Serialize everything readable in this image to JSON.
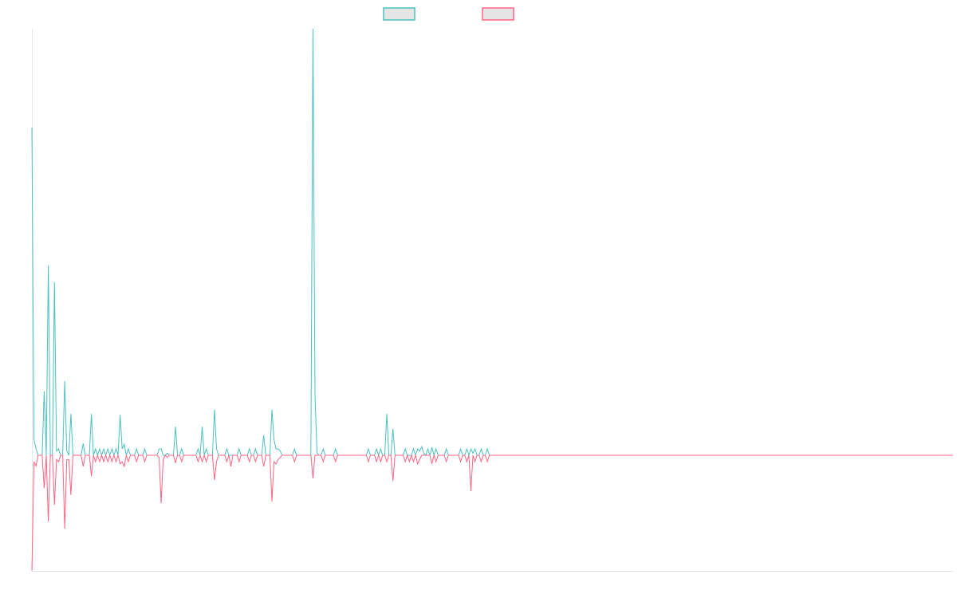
{
  "chart_data": {
    "type": "line",
    "title": "",
    "xlabel": "",
    "ylabel": "",
    "length": 450,
    "xlim": [
      0,
      449
    ],
    "ylim": [
      -27.1,
      100
    ],
    "grid": false,
    "legend_position": "top-center",
    "series": [
      {
        "name": "",
        "color": "#4bc0c0",
        "points": {
          "x": [
            0,
            1,
            2,
            3,
            6,
            7,
            8,
            9,
            11,
            12,
            13,
            14,
            16,
            17,
            19,
            20,
            25,
            26,
            29,
            30,
            31,
            33,
            35,
            37,
            39,
            41,
            43,
            44,
            45,
            46,
            47,
            51,
            55,
            62,
            63,
            66,
            70,
            73,
            81,
            83,
            85,
            89,
            90,
            95,
            101,
            106,
            109,
            113,
            117,
            118,
            119,
            120,
            121,
            128,
            137,
            138,
            139,
            142,
            148,
            164,
            168,
            170,
            173,
            176,
            182,
            186,
            188,
            189,
            190,
            191,
            193,
            195,
            197,
            202,
            209,
            212,
            214,
            215,
            216,
            219,
            222
          ],
          "y": [
            76.8,
            3.7,
            1.5,
            0,
            15,
            0,
            44.5,
            0,
            40.6,
            1,
            1.5,
            0,
            17.4,
            1,
            9.7,
            0,
            2.8,
            0,
            9.7,
            0,
            1.5,
            1.5,
            1.5,
            1.5,
            1.5,
            1.5,
            9.5,
            1.5,
            2.6,
            0,
            1.5,
            1.5,
            1.5,
            1.5,
            1.5,
            0.5,
            6.7,
            1.5,
            1.5,
            6.7,
            1.5,
            10.7,
            1.5,
            1.5,
            1.5,
            1.5,
            1.5,
            4.7,
            10.7,
            3.7,
            1.5,
            1.5,
            1,
            1.5,
            100,
            14,
            0.5,
            1.5,
            1.5,
            1.5,
            1.5,
            1.5,
            9.7,
            6.2,
            1.5,
            1.5,
            1.5,
            1,
            2,
            0.5,
            1.5,
            1.9,
            1.5,
            1.5,
            1.5,
            1.5,
            1.5,
            0.5,
            1.5,
            1.5,
            1.5
          ]
        }
      },
      {
        "name": "",
        "color": "#ff6384",
        "points": {
          "x": [
            0,
            1,
            2,
            3,
            6,
            7,
            8,
            9,
            11,
            12,
            13,
            14,
            16,
            17,
            18,
            19,
            20,
            25,
            26,
            29,
            30,
            31,
            33,
            35,
            37,
            39,
            41,
            43,
            44,
            45,
            46,
            47,
            51,
            55,
            62,
            63,
            64,
            66,
            70,
            73,
            81,
            83,
            85,
            89,
            90,
            95,
            97,
            101,
            106,
            109,
            113,
            117,
            118,
            119,
            120,
            121,
            128,
            137,
            138,
            142,
            148,
            164,
            168,
            170,
            173,
            176,
            182,
            184,
            186,
            188,
            189,
            195,
            197,
            202,
            209,
            212,
            214,
            215,
            216,
            219,
            222
          ],
          "y": [
            -27,
            -1.5,
            -2.5,
            0,
            -7.7,
            0,
            -15.5,
            0,
            -11.6,
            -1,
            -1.5,
            0,
            -17.2,
            -1,
            -1,
            -9.3,
            0,
            -2.6,
            0,
            -4.9,
            0,
            -1.5,
            -1.5,
            -1.5,
            -1.5,
            -1.5,
            -1.5,
            -2,
            -1.5,
            -2.6,
            0,
            -1.5,
            -1.5,
            -1.5,
            -0.5,
            -11.2,
            -1,
            -0.5,
            -1.7,
            -1.5,
            -1.5,
            -1.5,
            -1.5,
            -5.8,
            -1.5,
            -1.5,
            -2.6,
            -1.5,
            -1.5,
            -1.5,
            -2.6,
            -10.8,
            -1.5,
            -2,
            -1,
            -0.5,
            -1.5,
            -5.4,
            0,
            -1.5,
            -1.5,
            -1.5,
            -1.5,
            -1.5,
            -1.5,
            -6,
            -1.5,
            -1.5,
            -1.5,
            -2,
            -1,
            -2,
            -1.5,
            -1.5,
            -1.5,
            -1.5,
            -8.4,
            0,
            -1.5,
            -1.5,
            -1.5
          ]
        }
      }
    ]
  }
}
